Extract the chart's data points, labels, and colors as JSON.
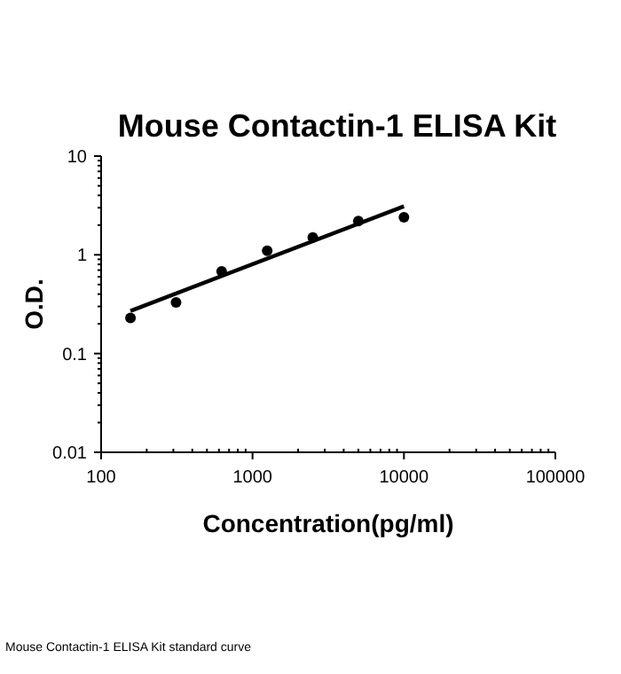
{
  "chart_data": {
    "type": "scatter",
    "title": "Mouse Contactin-1 ELISA Kit",
    "xlabel": "Concentration(pg/ml)",
    "ylabel": "O.D.",
    "log": "xy",
    "grid": false,
    "marker": "circle",
    "xlim": [
      100,
      100000
    ],
    "xticks": [
      100,
      1000,
      10000,
      100000
    ],
    "ylim": [
      0.01,
      10
    ],
    "yticks": [
      0.01,
      0.1,
      1,
      10
    ],
    "series": [
      {
        "color": "#000000",
        "x": [
          156.25,
          312.5,
          625,
          1250,
          2500,
          5000,
          10000
        ],
        "values": [
          0.23,
          0.33,
          0.68,
          1.1,
          1.5,
          2.2,
          2.4
        ]
      },
      {
        "type": "line",
        "color": "#000000",
        "x": [
          156.25,
          10000
        ],
        "values": [
          0.27,
          3.1
        ],
        "marker": "none",
        "line_style": "solid"
      }
    ],
    "annotations": [
      "Mouse Contactin-1 ELISA Kit standard curve"
    ]
  }
}
